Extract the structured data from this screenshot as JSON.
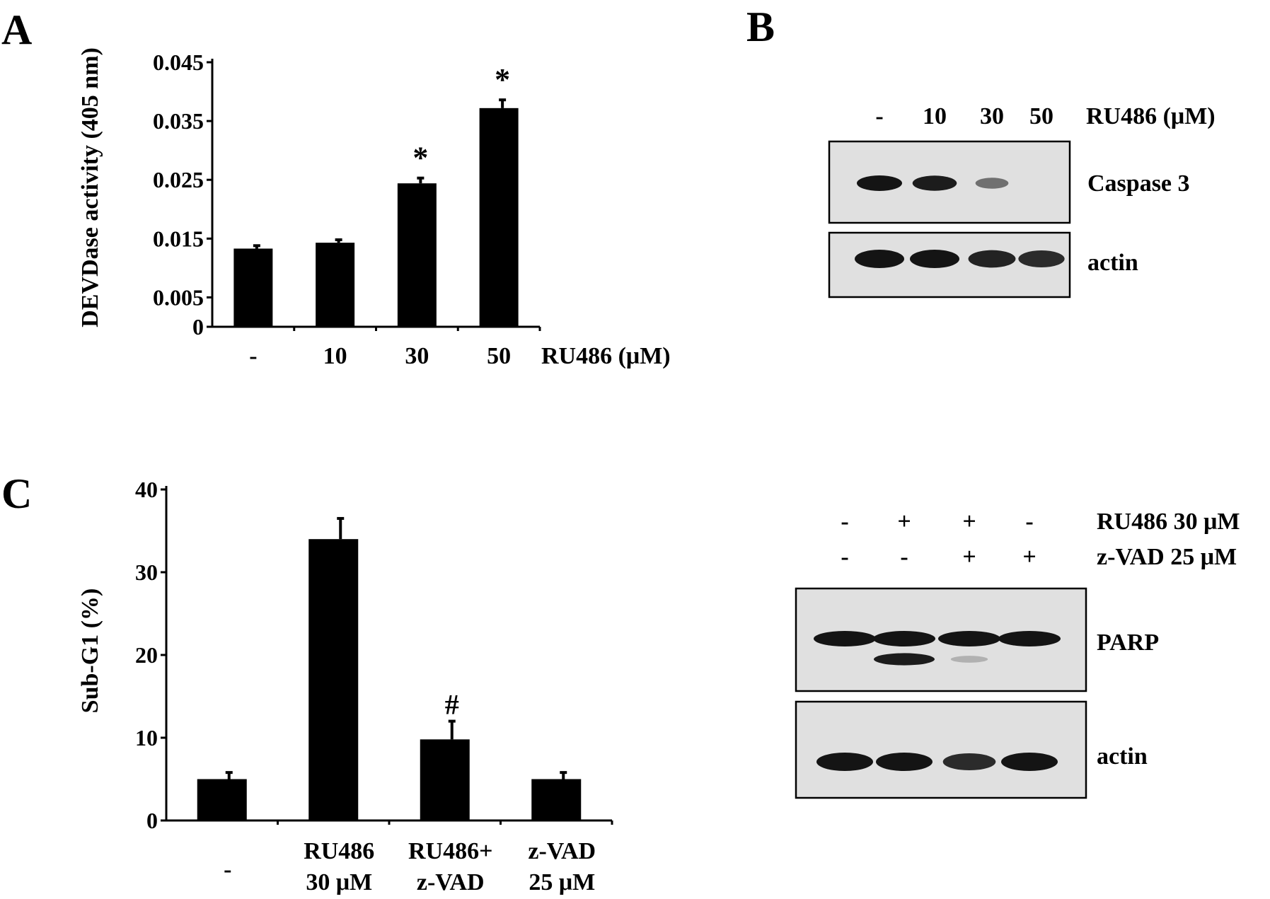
{
  "colors": {
    "bar": "#000000",
    "blot_bg": "#e0e0e0",
    "band": "#141414"
  },
  "panel_a": {
    "letter": "A",
    "chart_data": {
      "type": "bar",
      "ylabel": "DEVDase activity (405 nm)",
      "xlabel": "RU486 (μM)",
      "categories": [
        "-",
        "10",
        "30",
        "50"
      ],
      "values": [
        0.0133,
        0.0143,
        0.0244,
        0.0372
      ],
      "errors": [
        0.0005,
        0.0005,
        0.0009,
        0.0014
      ],
      "annotations": [
        "",
        "",
        "*",
        "*"
      ],
      "ylim": [
        0,
        0.045
      ],
      "yticks": [
        "0",
        "0.005",
        "0.015",
        "0.025",
        "0.035",
        "0.045"
      ],
      "grid": false
    }
  },
  "panel_b": {
    "letter": "B",
    "treatment_label": "RU486 (μM)",
    "lanes": [
      "-",
      "10",
      "30",
      "50"
    ],
    "blots": [
      {
        "label": "Caspase 3",
        "bands": [
          1.0,
          0.95,
          0.4,
          0.0
        ]
      },
      {
        "label": "actin",
        "bands": [
          1.0,
          1.0,
          0.9,
          0.85
        ]
      }
    ]
  },
  "panel_c": {
    "letter": "C",
    "chart_data": {
      "type": "bar",
      "ylabel": "Sub-G1 (%)",
      "categories": [
        [
          "-"
        ],
        [
          "RU486",
          "30 μM"
        ],
        [
          "RU486+",
          "z-VAD"
        ],
        [
          "z-VAD",
          "25 μM"
        ]
      ],
      "values": [
        5.0,
        34.0,
        9.8,
        5.0
      ],
      "errors": [
        0.8,
        2.5,
        2.2,
        0.8
      ],
      "annotations": [
        "",
        "",
        "#",
        ""
      ],
      "ylim": [
        0,
        40
      ],
      "yticks": [
        "0",
        "10",
        "20",
        "30",
        "40"
      ],
      "grid": false
    }
  },
  "panel_d": {
    "treatments": [
      {
        "label": "RU486 30 μM",
        "signs": [
          "-",
          "+",
          "+",
          "-"
        ]
      },
      {
        "label": "z-VAD 25 μM",
        "signs": [
          "-",
          "-",
          "+",
          "+"
        ]
      }
    ],
    "blots": [
      {
        "label": "PARP",
        "bands": [
          1.0,
          1.0,
          1.0,
          1.0
        ],
        "cleaved": [
          0.0,
          0.95,
          0.1,
          0.0
        ]
      },
      {
        "label": "actin",
        "bands": [
          1.0,
          1.0,
          0.85,
          1.0
        ]
      }
    ]
  }
}
